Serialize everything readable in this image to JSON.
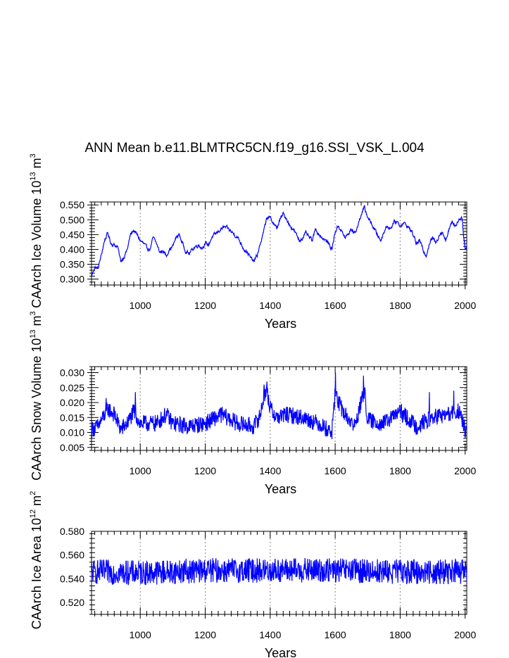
{
  "title": "ANN Mean b.e11.BLMTRC5CN.f19_g16.SSI_VSK_L.004",
  "line_color": "#0000ff",
  "chart_data": [
    {
      "type": "line",
      "id": "ice-volume",
      "xlabel": "Years",
      "ylabel": "CAArch Ice Volume 10",
      "ylabel_exp": "13",
      "ylabel_unit": " m",
      "ylabel_unit_exp": "3",
      "xlim": [
        850,
        2005
      ],
      "ylim": [
        0.28,
        0.56
      ],
      "xticks": [
        1000,
        1200,
        1400,
        1600,
        1800,
        2000
      ],
      "yticks": [
        0.3,
        0.35,
        0.4,
        0.45,
        0.5,
        0.55
      ],
      "ytick_labels": [
        "0.300",
        "0.350",
        "0.400",
        "0.450",
        "0.500",
        "0.550"
      ],
      "grid": "vertical dashed at major x ticks",
      "series": [
        {
          "name": "Ice Volume",
          "keyframes": [
            [
              850,
              0.31
            ],
            [
              860,
              0.34
            ],
            [
              870,
              0.335
            ],
            [
              880,
              0.38
            ],
            [
              890,
              0.43
            ],
            [
              900,
              0.455
            ],
            [
              910,
              0.42
            ],
            [
              920,
              0.415
            ],
            [
              930,
              0.41
            ],
            [
              940,
              0.36
            ],
            [
              950,
              0.375
            ],
            [
              960,
              0.4
            ],
            [
              970,
              0.45
            ],
            [
              980,
              0.465
            ],
            [
              990,
              0.45
            ],
            [
              1000,
              0.43
            ],
            [
              1010,
              0.42
            ],
            [
              1020,
              0.405
            ],
            [
              1030,
              0.4
            ],
            [
              1040,
              0.44
            ],
            [
              1050,
              0.42
            ],
            [
              1060,
              0.39
            ],
            [
              1070,
              0.395
            ],
            [
              1080,
              0.38
            ],
            [
              1090,
              0.4
            ],
            [
              1100,
              0.41
            ],
            [
              1110,
              0.44
            ],
            [
              1120,
              0.45
            ],
            [
              1130,
              0.42
            ],
            [
              1140,
              0.395
            ],
            [
              1150,
              0.385
            ],
            [
              1160,
              0.4
            ],
            [
              1170,
              0.41
            ],
            [
              1180,
              0.415
            ],
            [
              1190,
              0.405
            ],
            [
              1200,
              0.42
            ],
            [
              1210,
              0.415
            ],
            [
              1220,
              0.44
            ],
            [
              1230,
              0.45
            ],
            [
              1240,
              0.46
            ],
            [
              1250,
              0.47
            ],
            [
              1260,
              0.475
            ],
            [
              1270,
              0.47
            ],
            [
              1280,
              0.46
            ],
            [
              1290,
              0.45
            ],
            [
              1300,
              0.44
            ],
            [
              1310,
              0.42
            ],
            [
              1320,
              0.4
            ],
            [
              1330,
              0.39
            ],
            [
              1340,
              0.37
            ],
            [
              1350,
              0.36
            ],
            [
              1360,
              0.38
            ],
            [
              1370,
              0.42
            ],
            [
              1380,
              0.46
            ],
            [
              1390,
              0.51
            ],
            [
              1400,
              0.505
            ],
            [
              1410,
              0.49
            ],
            [
              1420,
              0.47
            ],
            [
              1430,
              0.5
            ],
            [
              1440,
              0.52
            ],
            [
              1450,
              0.505
            ],
            [
              1460,
              0.48
            ],
            [
              1470,
              0.47
            ],
            [
              1480,
              0.45
            ],
            [
              1490,
              0.43
            ],
            [
              1500,
              0.44
            ],
            [
              1510,
              0.455
            ],
            [
              1520,
              0.44
            ],
            [
              1530,
              0.43
            ],
            [
              1540,
              0.47
            ],
            [
              1550,
              0.45
            ],
            [
              1560,
              0.44
            ],
            [
              1570,
              0.43
            ],
            [
              1580,
              0.42
            ],
            [
              1590,
              0.4
            ],
            [
              1600,
              0.46
            ],
            [
              1610,
              0.48
            ],
            [
              1620,
              0.46
            ],
            [
              1630,
              0.44
            ],
            [
              1640,
              0.45
            ],
            [
              1650,
              0.47
            ],
            [
              1660,
              0.455
            ],
            [
              1670,
              0.48
            ],
            [
              1680,
              0.52
            ],
            [
              1690,
              0.54
            ],
            [
              1700,
              0.51
            ],
            [
              1710,
              0.49
            ],
            [
              1720,
              0.47
            ],
            [
              1730,
              0.45
            ],
            [
              1740,
              0.43
            ],
            [
              1750,
              0.46
            ],
            [
              1760,
              0.48
            ],
            [
              1770,
              0.47
            ],
            [
              1780,
              0.49
            ],
            [
              1790,
              0.495
            ],
            [
              1800,
              0.48
            ],
            [
              1810,
              0.49
            ],
            [
              1820,
              0.48
            ],
            [
              1830,
              0.47
            ],
            [
              1840,
              0.45
            ],
            [
              1850,
              0.42
            ],
            [
              1860,
              0.43
            ],
            [
              1870,
              0.4
            ],
            [
              1880,
              0.38
            ],
            [
              1890,
              0.42
            ],
            [
              1900,
              0.44
            ],
            [
              1910,
              0.42
            ],
            [
              1920,
              0.45
            ],
            [
              1930,
              0.46
            ],
            [
              1940,
              0.43
            ],
            [
              1950,
              0.47
            ],
            [
              1960,
              0.49
            ],
            [
              1970,
              0.48
            ],
            [
              1980,
              0.5
            ],
            [
              1990,
              0.51
            ],
            [
              2000,
              0.4
            ],
            [
              2005,
              0.405
            ]
          ],
          "noise": 0.007
        }
      ]
    },
    {
      "type": "line",
      "id": "snow-volume",
      "xlabel": "Years",
      "ylabel": "CAArch Snow Volume 10",
      "ylabel_exp": "13",
      "ylabel_unit": " m",
      "ylabel_unit_exp": "3",
      "xlim": [
        850,
        2005
      ],
      "ylim": [
        0.004,
        0.032
      ],
      "xticks": [
        1000,
        1200,
        1400,
        1600,
        1800,
        2000
      ],
      "yticks": [
        0.005,
        0.01,
        0.015,
        0.02,
        0.025,
        0.03
      ],
      "ytick_labels": [
        "0.005",
        "0.010",
        "0.015",
        "0.020",
        "0.025",
        "0.030"
      ],
      "grid": "vertical dashed at major x ticks",
      "series": [
        {
          "name": "Snow Volume",
          "keyframes": [
            [
              850,
              0.011
            ],
            [
              870,
              0.012
            ],
            [
              890,
              0.016
            ],
            [
              900,
              0.018
            ],
            [
              920,
              0.016
            ],
            [
              940,
              0.011
            ],
            [
              960,
              0.013
            ],
            [
              980,
              0.017
            ],
            [
              1000,
              0.013
            ],
            [
              1050,
              0.013
            ],
            [
              1080,
              0.016
            ],
            [
              1100,
              0.013
            ],
            [
              1150,
              0.012
            ],
            [
              1200,
              0.013
            ],
            [
              1250,
              0.016
            ],
            [
              1300,
              0.013
            ],
            [
              1350,
              0.012
            ],
            [
              1370,
              0.016
            ],
            [
              1380,
              0.022
            ],
            [
              1390,
              0.024
            ],
            [
              1400,
              0.018
            ],
            [
              1420,
              0.015
            ],
            [
              1450,
              0.016
            ],
            [
              1500,
              0.015
            ],
            [
              1550,
              0.013
            ],
            [
              1590,
              0.01
            ],
            [
              1600,
              0.024
            ],
            [
              1610,
              0.02
            ],
            [
              1630,
              0.016
            ],
            [
              1660,
              0.012
            ],
            [
              1680,
              0.02
            ],
            [
              1690,
              0.024
            ],
            [
              1700,
              0.014
            ],
            [
              1750,
              0.013
            ],
            [
              1800,
              0.017
            ],
            [
              1850,
              0.012
            ],
            [
              1900,
              0.015
            ],
            [
              1950,
              0.016
            ],
            [
              1980,
              0.017
            ],
            [
              2000,
              0.011
            ],
            [
              2005,
              0.011
            ]
          ],
          "noise": 0.0028,
          "peaks": [
            [
              1601,
              0.03
            ],
            [
              1687,
              0.029
            ],
            [
              1390,
              0.027
            ],
            [
              1381,
              0.026
            ],
            [
              895,
              0.0215
            ],
            [
              985,
              0.0235
            ],
            [
              1890,
              0.0235
            ],
            [
              1965,
              0.024
            ]
          ]
        }
      ]
    },
    {
      "type": "line",
      "id": "ice-area",
      "xlabel": "Years",
      "ylabel": "CAArch Ice Area 10",
      "ylabel_exp": "12",
      "ylabel_unit": " m",
      "ylabel_unit_exp": "2",
      "xlim": [
        850,
        2005
      ],
      "ylim": [
        0.51,
        0.58
      ],
      "xticks": [
        1000,
        1200,
        1400,
        1600,
        1800,
        2000
      ],
      "yticks": [
        0.52,
        0.54,
        0.56,
        0.58
      ],
      "ytick_labels": [
        "0.520",
        "0.540",
        "0.560",
        "0.580"
      ],
      "grid": "vertical dashed at major x ticks",
      "series": [
        {
          "name": "Ice Area",
          "keyframes": [
            [
              850,
              0.546
            ],
            [
              1000,
              0.545
            ],
            [
              1200,
              0.547
            ],
            [
              1400,
              0.547
            ],
            [
              1600,
              0.547
            ],
            [
              1800,
              0.546
            ],
            [
              2005,
              0.546
            ]
          ],
          "noise": 0.0105,
          "clamp": [
            0.512,
            0.572
          ]
        }
      ]
    }
  ]
}
